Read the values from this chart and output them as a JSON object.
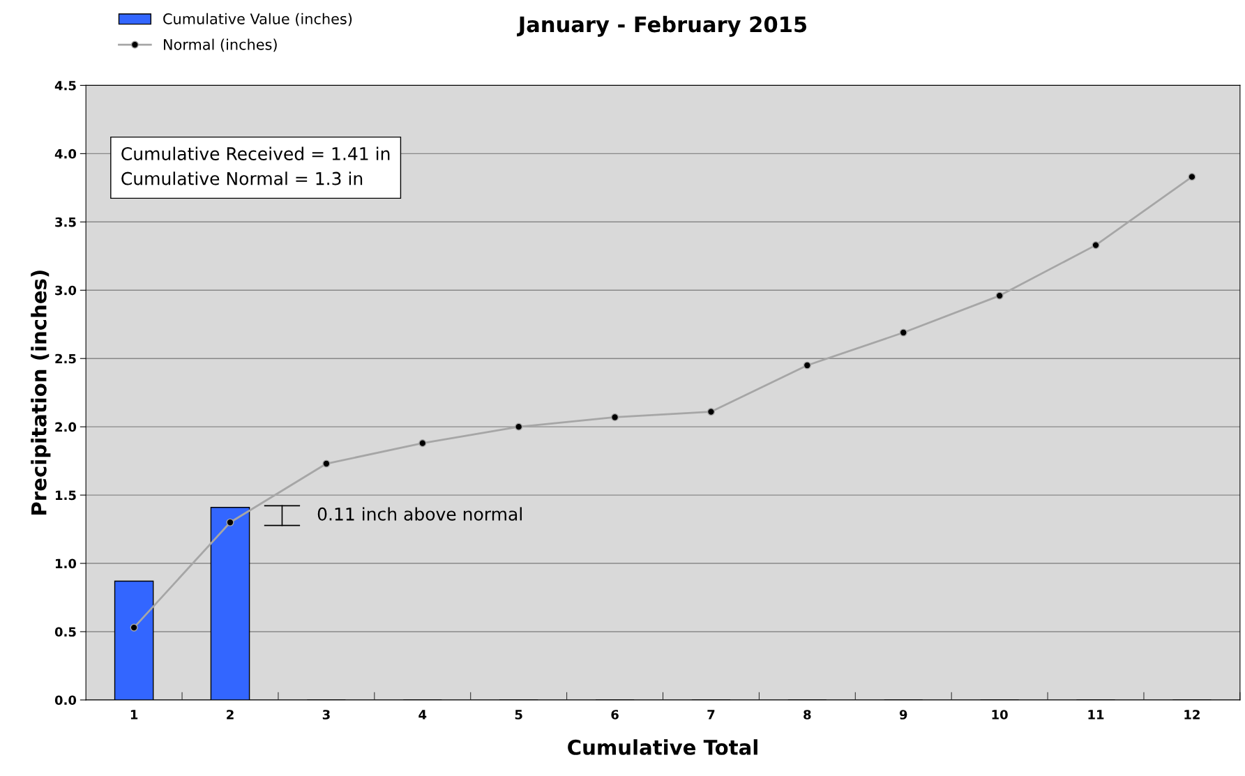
{
  "chart_data": {
    "type": "bar",
    "title": "January - February 2015",
    "xlabel": "Cumulative Total",
    "ylabel": "Precipitation (inches)",
    "categories": [
      "1",
      "2",
      "3",
      "4",
      "5",
      "6",
      "7",
      "8",
      "9",
      "10",
      "11",
      "12"
    ],
    "series": [
      {
        "name": "Cumulative Value (inches)",
        "color": "#3366ff",
        "values": [
          0.87,
          1.41,
          null,
          null,
          null,
          null,
          null,
          null,
          null,
          null,
          null,
          null
        ]
      },
      {
        "name": "Normal (inches)",
        "type": "line",
        "color": "#a6a6a6",
        "marker": "circle",
        "values": [
          0.53,
          1.3,
          1.73,
          1.88,
          2.0,
          2.07,
          2.11,
          2.45,
          2.69,
          2.96,
          3.33,
          3.83
        ]
      }
    ],
    "ylim": [
      0,
      4.5
    ],
    "yticks": [
      {
        "value": 0,
        "label": "0.0"
      },
      0.5,
      {
        "value": 1,
        "label": "1.0"
      },
      1.5,
      {
        "value": 2,
        "label": "2.0"
      },
      2.5,
      {
        "value": 3,
        "label": "3.0"
      },
      3.5,
      {
        "value": 4,
        "label": "4.0"
      },
      4.5
    ],
    "grid": "y",
    "legend": "top left",
    "annotations": [
      "Cumulative Received = 1.41 in\nCumulative Normal = 1.3 in",
      "0.11 inch above normal"
    ]
  }
}
